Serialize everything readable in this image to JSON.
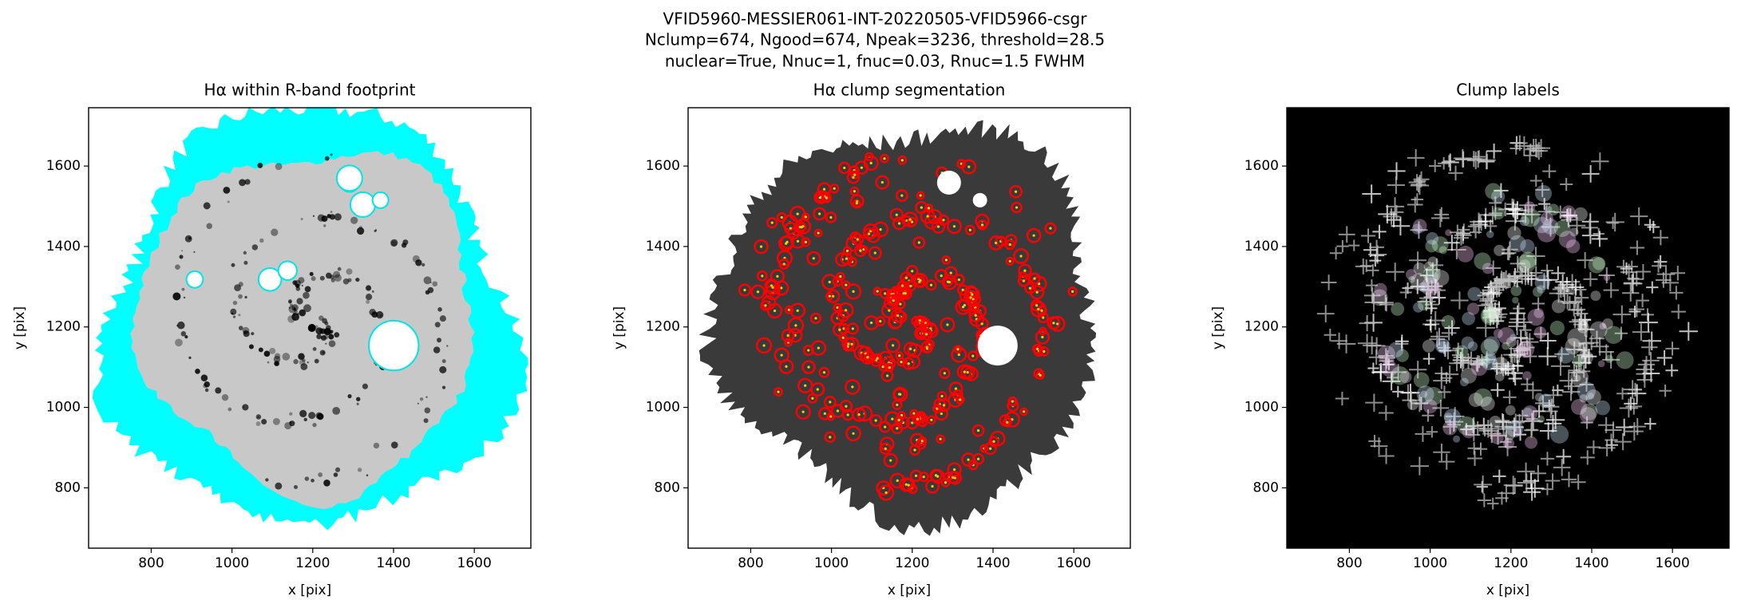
{
  "suptitle": [
    "VFID5960-MESSIER061-INT-20220505-VFID5966-csgr",
    "Nclump=674, Ngood=674, Npeak=3236, threshold=28.5",
    "nuclear=True, Nnuc=1, fnuc=0.03, Rnuc=1.5 FWHM"
  ],
  "chart_data": [
    {
      "type": "image",
      "title": "Hα within R-band footprint",
      "xlabel": "x [pix]",
      "ylabel": "y [pix]",
      "xlim": [
        645,
        1740
      ],
      "ylim": [
        650,
        1745
      ],
      "xticks": [
        800,
        1000,
        1200,
        1400,
        1600
      ],
      "yticks": [
        800,
        1000,
        1200,
        1400,
        1600
      ],
      "background": "#ffffff"
    },
    {
      "type": "image",
      "title": "Hα clump segmentation",
      "xlabel": "x [pix]",
      "ylabel": "y [pix]",
      "xlim": [
        645,
        1740
      ],
      "ylim": [
        650,
        1745
      ],
      "xticks": [
        800,
        1000,
        1200,
        1400,
        1600
      ],
      "yticks": [
        800,
        1000,
        1200,
        1400,
        1600
      ],
      "background": "#ffffff"
    },
    {
      "type": "image",
      "title": "Clump labels",
      "xlabel": "x [pix]",
      "ylabel": "y [pix]",
      "xlim": [
        645,
        1740
      ],
      "ylim": [
        650,
        1745
      ],
      "xticks": [
        800,
        1000,
        1200,
        1400,
        1600
      ],
      "yticks": [
        800,
        1000,
        1200,
        1400,
        1600
      ],
      "background": "#000000"
    }
  ]
}
